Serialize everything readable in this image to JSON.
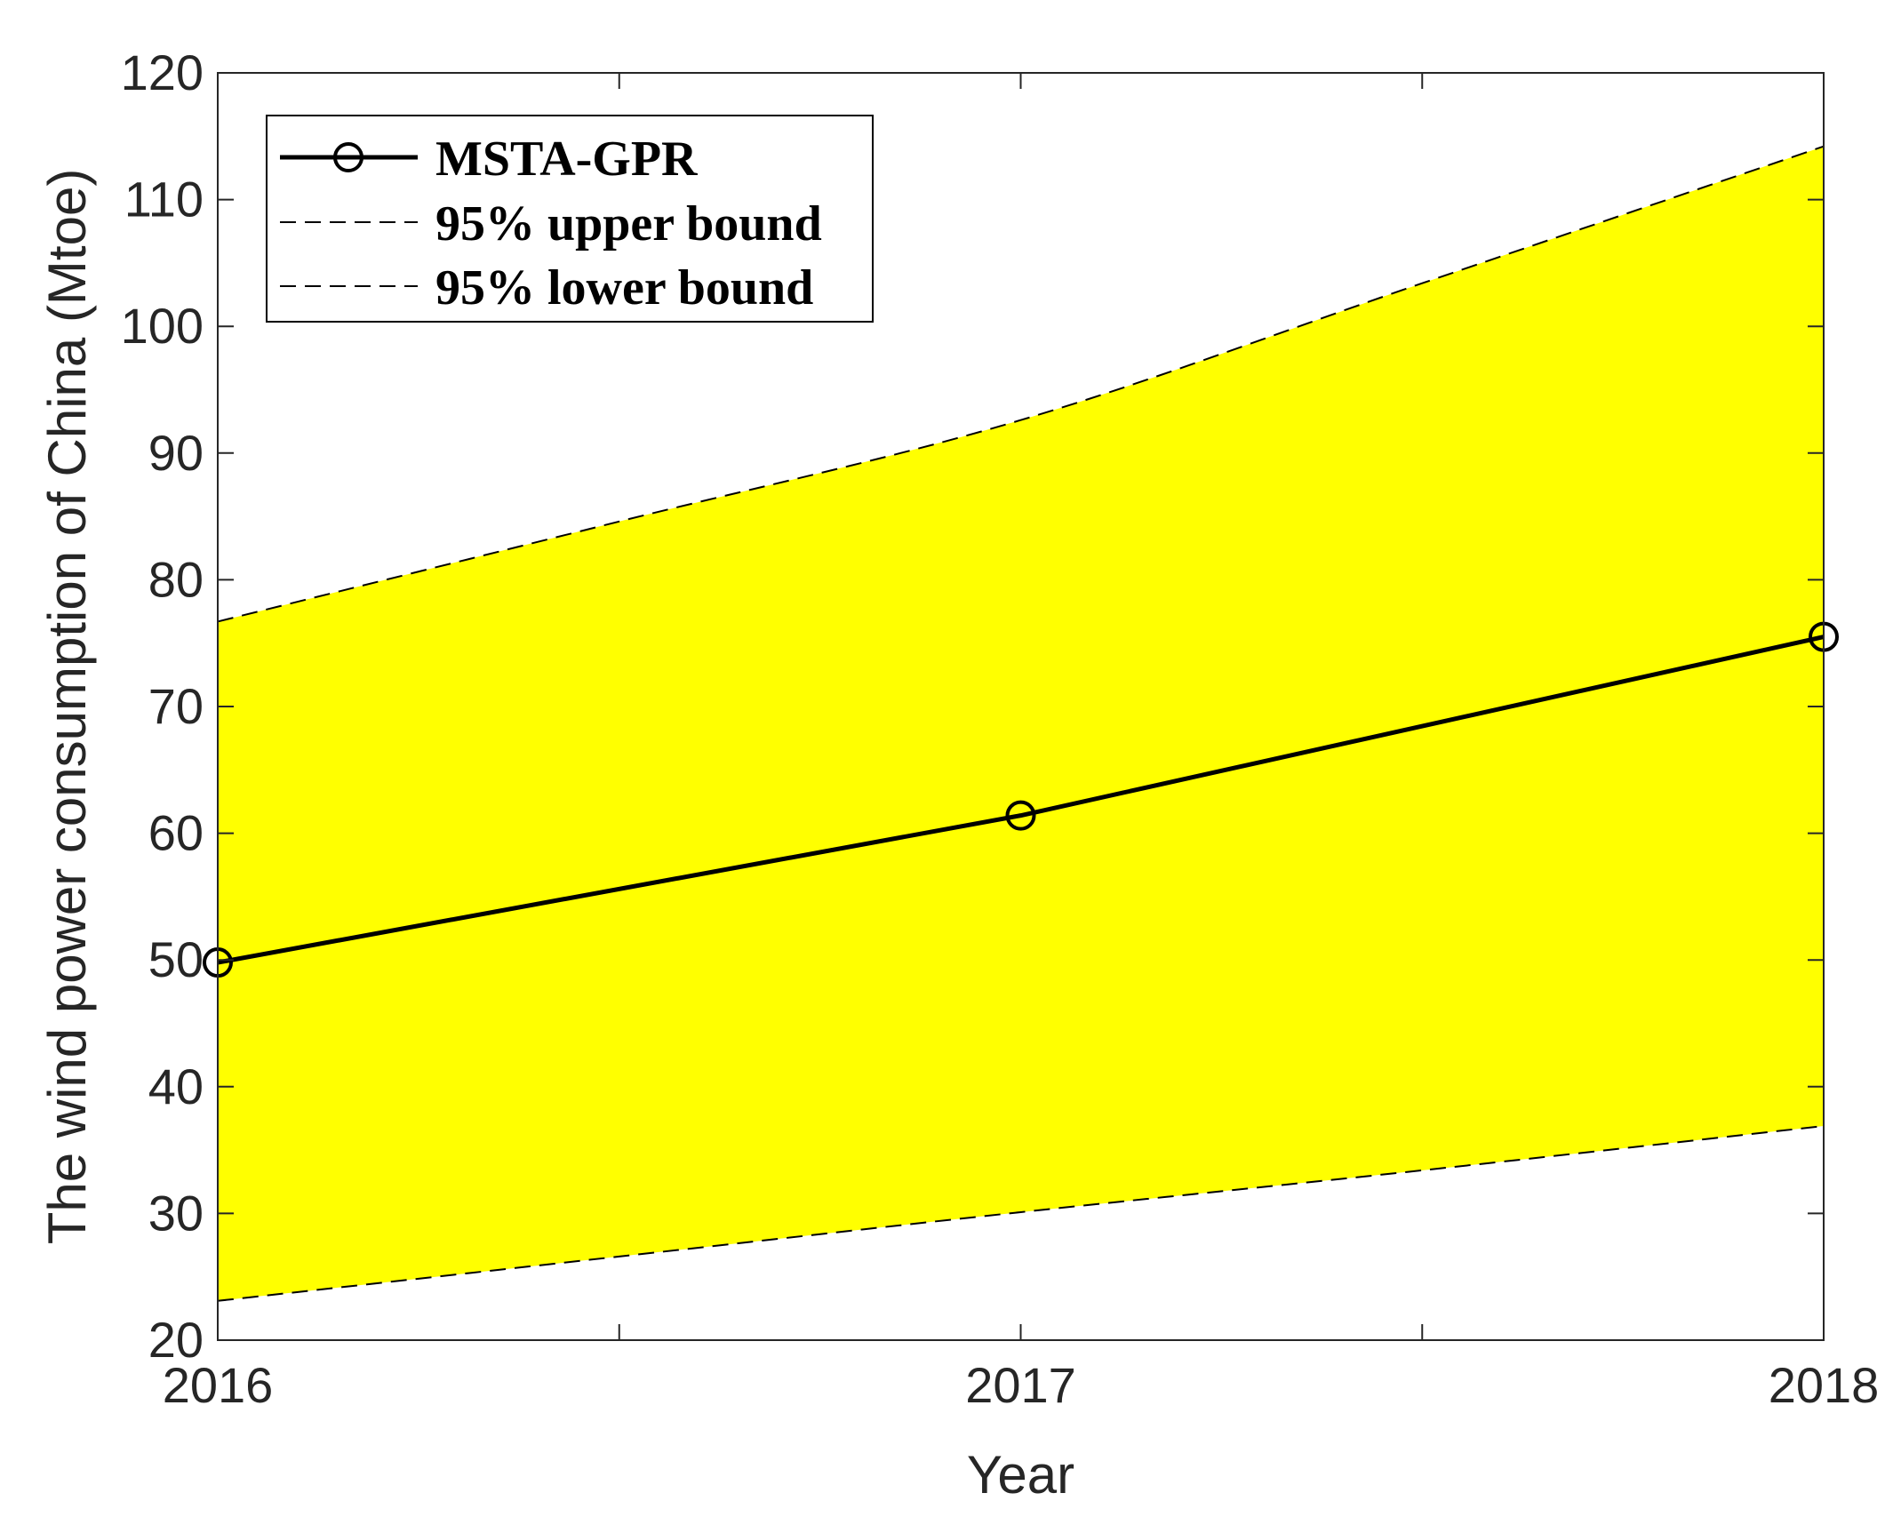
{
  "chart_data": {
    "type": "line",
    "x": [
      2016,
      2017,
      2018
    ],
    "x_ticks": [
      "2016",
      "2017",
      "2018"
    ],
    "xlim": [
      2016,
      2018
    ],
    "ylim": [
      20,
      120
    ],
    "y_ticks": [
      "20",
      "30",
      "40",
      "50",
      "60",
      "70",
      "80",
      "90",
      "100",
      "110",
      "120"
    ],
    "xlabel": "Year",
    "ylabel": "The wind power consumption of China (Mtoe)",
    "grid": false,
    "legend_position": "top-left",
    "series": [
      {
        "name": "MSTA-GPR",
        "style": "solid-circle-markers",
        "color": "#000000",
        "x": [
          2016,
          2017,
          2018
        ],
        "values": [
          49.8,
          61.4,
          75.5
        ]
      },
      {
        "name": "95% upper bound",
        "style": "dashed",
        "color": "#000000",
        "x": [
          2016,
          2016.5,
          2017,
          2017.5,
          2018
        ],
        "values": [
          76.7,
          84.6,
          92.6,
          103.4,
          114.2
        ]
      },
      {
        "name": "95% lower bound",
        "style": "dashed",
        "color": "#000000",
        "x": [
          2016,
          2016.5,
          2017,
          2017.5,
          2018
        ],
        "values": [
          23.1,
          26.6,
          30.1,
          33.4,
          36.9
        ]
      }
    ],
    "band_fill_color": "#ffff00"
  }
}
